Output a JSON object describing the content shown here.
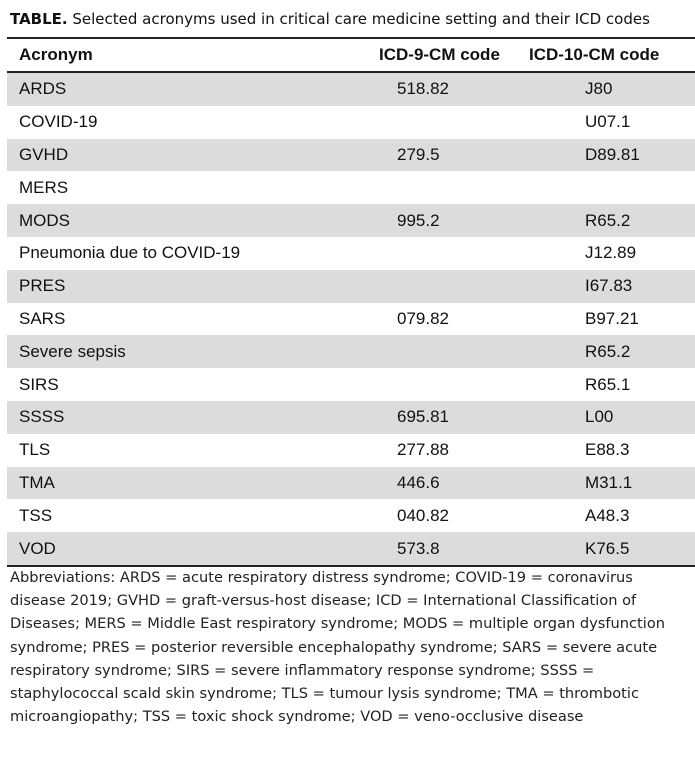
{
  "caption": {
    "label": "TABLE.",
    "text": " Selected acronyms used in critical care medicine setting and their ICD codes"
  },
  "table": {
    "headers": [
      "Acronym",
      "ICD-9-CM code",
      "ICD-10-CM code"
    ],
    "rows": [
      [
        "ARDS",
        "518.82",
        "J80"
      ],
      [
        "COVID-19",
        "",
        "U07.1"
      ],
      [
        "GVHD",
        "279.5",
        "D89.81"
      ],
      [
        "MERS",
        "",
        ""
      ],
      [
        "MODS",
        "995.2",
        "R65.2"
      ],
      [
        "Pneumonia due to COVID-19",
        "",
        "J12.89"
      ],
      [
        "PRES",
        "",
        "I67.83"
      ],
      [
        "SARS",
        "079.82",
        "B97.21"
      ],
      [
        "Severe sepsis",
        "",
        "R65.2"
      ],
      [
        "SIRS",
        "",
        "R65.1"
      ],
      [
        "SSSS",
        "695.81",
        "L00"
      ],
      [
        "TLS",
        "277.88",
        "E88.3"
      ],
      [
        "TMA",
        "446.6",
        "M31.1"
      ],
      [
        "TSS",
        "040.82",
        "A48.3"
      ],
      [
        "VOD",
        "573.8",
        "K76.5"
      ]
    ]
  },
  "footnote": "Abbreviations: ARDS = acute respiratory distress syndrome; COVID-19 = coronavirus disease 2019; GVHD = graft-versus-host disease; ICD = International Classification of Diseases; MERS = Middle East respiratory syndrome; MODS = multiple organ dysfunction syndrome; PRES = posterior reversible encephalopathy syndrome; SARS = severe acute respiratory syndrome; SIRS = severe inflammatory response syndrome; SSSS = staphylococcal scald skin syndrome; TLS = tumour lysis syndrome; TMA = thrombotic microangiopathy; TSS = toxic shock syndrome; VOD = veno-occlusive disease",
  "colors": {
    "shaded_row": "#dcdcdc",
    "rule": "#222222"
  }
}
